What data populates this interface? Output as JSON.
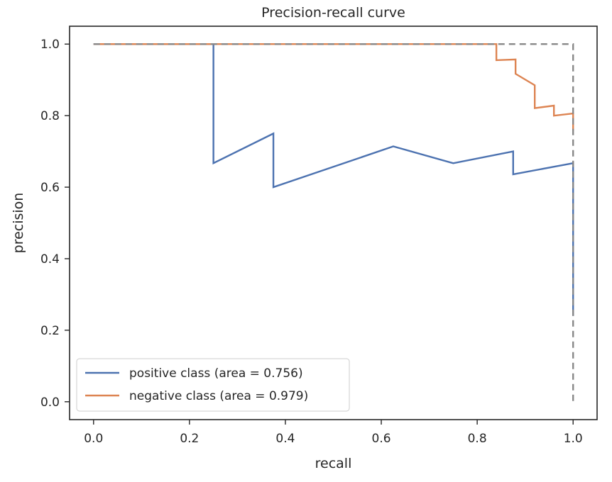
{
  "chart_data": {
    "type": "line",
    "title": "Precision-recall curve",
    "xlabel": "recall",
    "ylabel": "precision",
    "xlim": [
      -0.05,
      1.05
    ],
    "ylim": [
      -0.05,
      1.05
    ],
    "xticks": [
      0.0,
      0.2,
      0.4,
      0.6,
      0.8,
      1.0
    ],
    "xtick_labels": [
      "0.0",
      "0.2",
      "0.4",
      "0.6",
      "0.8",
      "1.0"
    ],
    "yticks": [
      0.0,
      0.2,
      0.4,
      0.6,
      0.8,
      1.0
    ],
    "ytick_labels": [
      "0.0",
      "0.2",
      "0.4",
      "0.6",
      "0.8",
      "1.0"
    ],
    "grid": false,
    "legend_position": "lower-left",
    "series": [
      {
        "name": "positive class (area = 0.756)",
        "color": "#4c72b0",
        "x": [
          0.0,
          0.25,
          0.25,
          0.375,
          0.375,
          0.625,
          0.75,
          0.875,
          0.875,
          1.0,
          1.0
        ],
        "y": [
          1.0,
          1.0,
          0.667,
          0.75,
          0.6,
          0.714,
          0.667,
          0.7,
          0.636,
          0.667,
          0.24
        ]
      },
      {
        "name": "negative class (area = 0.979)",
        "color": "#dd8452",
        "x": [
          0.0,
          0.84,
          0.84,
          0.88,
          0.88,
          0.92,
          0.92,
          0.96,
          0.96,
          1.0,
          1.0
        ],
        "y": [
          1.0,
          1.0,
          0.955,
          0.957,
          0.917,
          0.885,
          0.821,
          0.828,
          0.8,
          0.806,
          0.758
        ]
      },
      {
        "name": "",
        "color": "#888888",
        "style": "dashed",
        "x": [
          0.0,
          1.0,
          1.0
        ],
        "y": [
          1.0,
          1.0,
          0.0
        ]
      }
    ]
  }
}
